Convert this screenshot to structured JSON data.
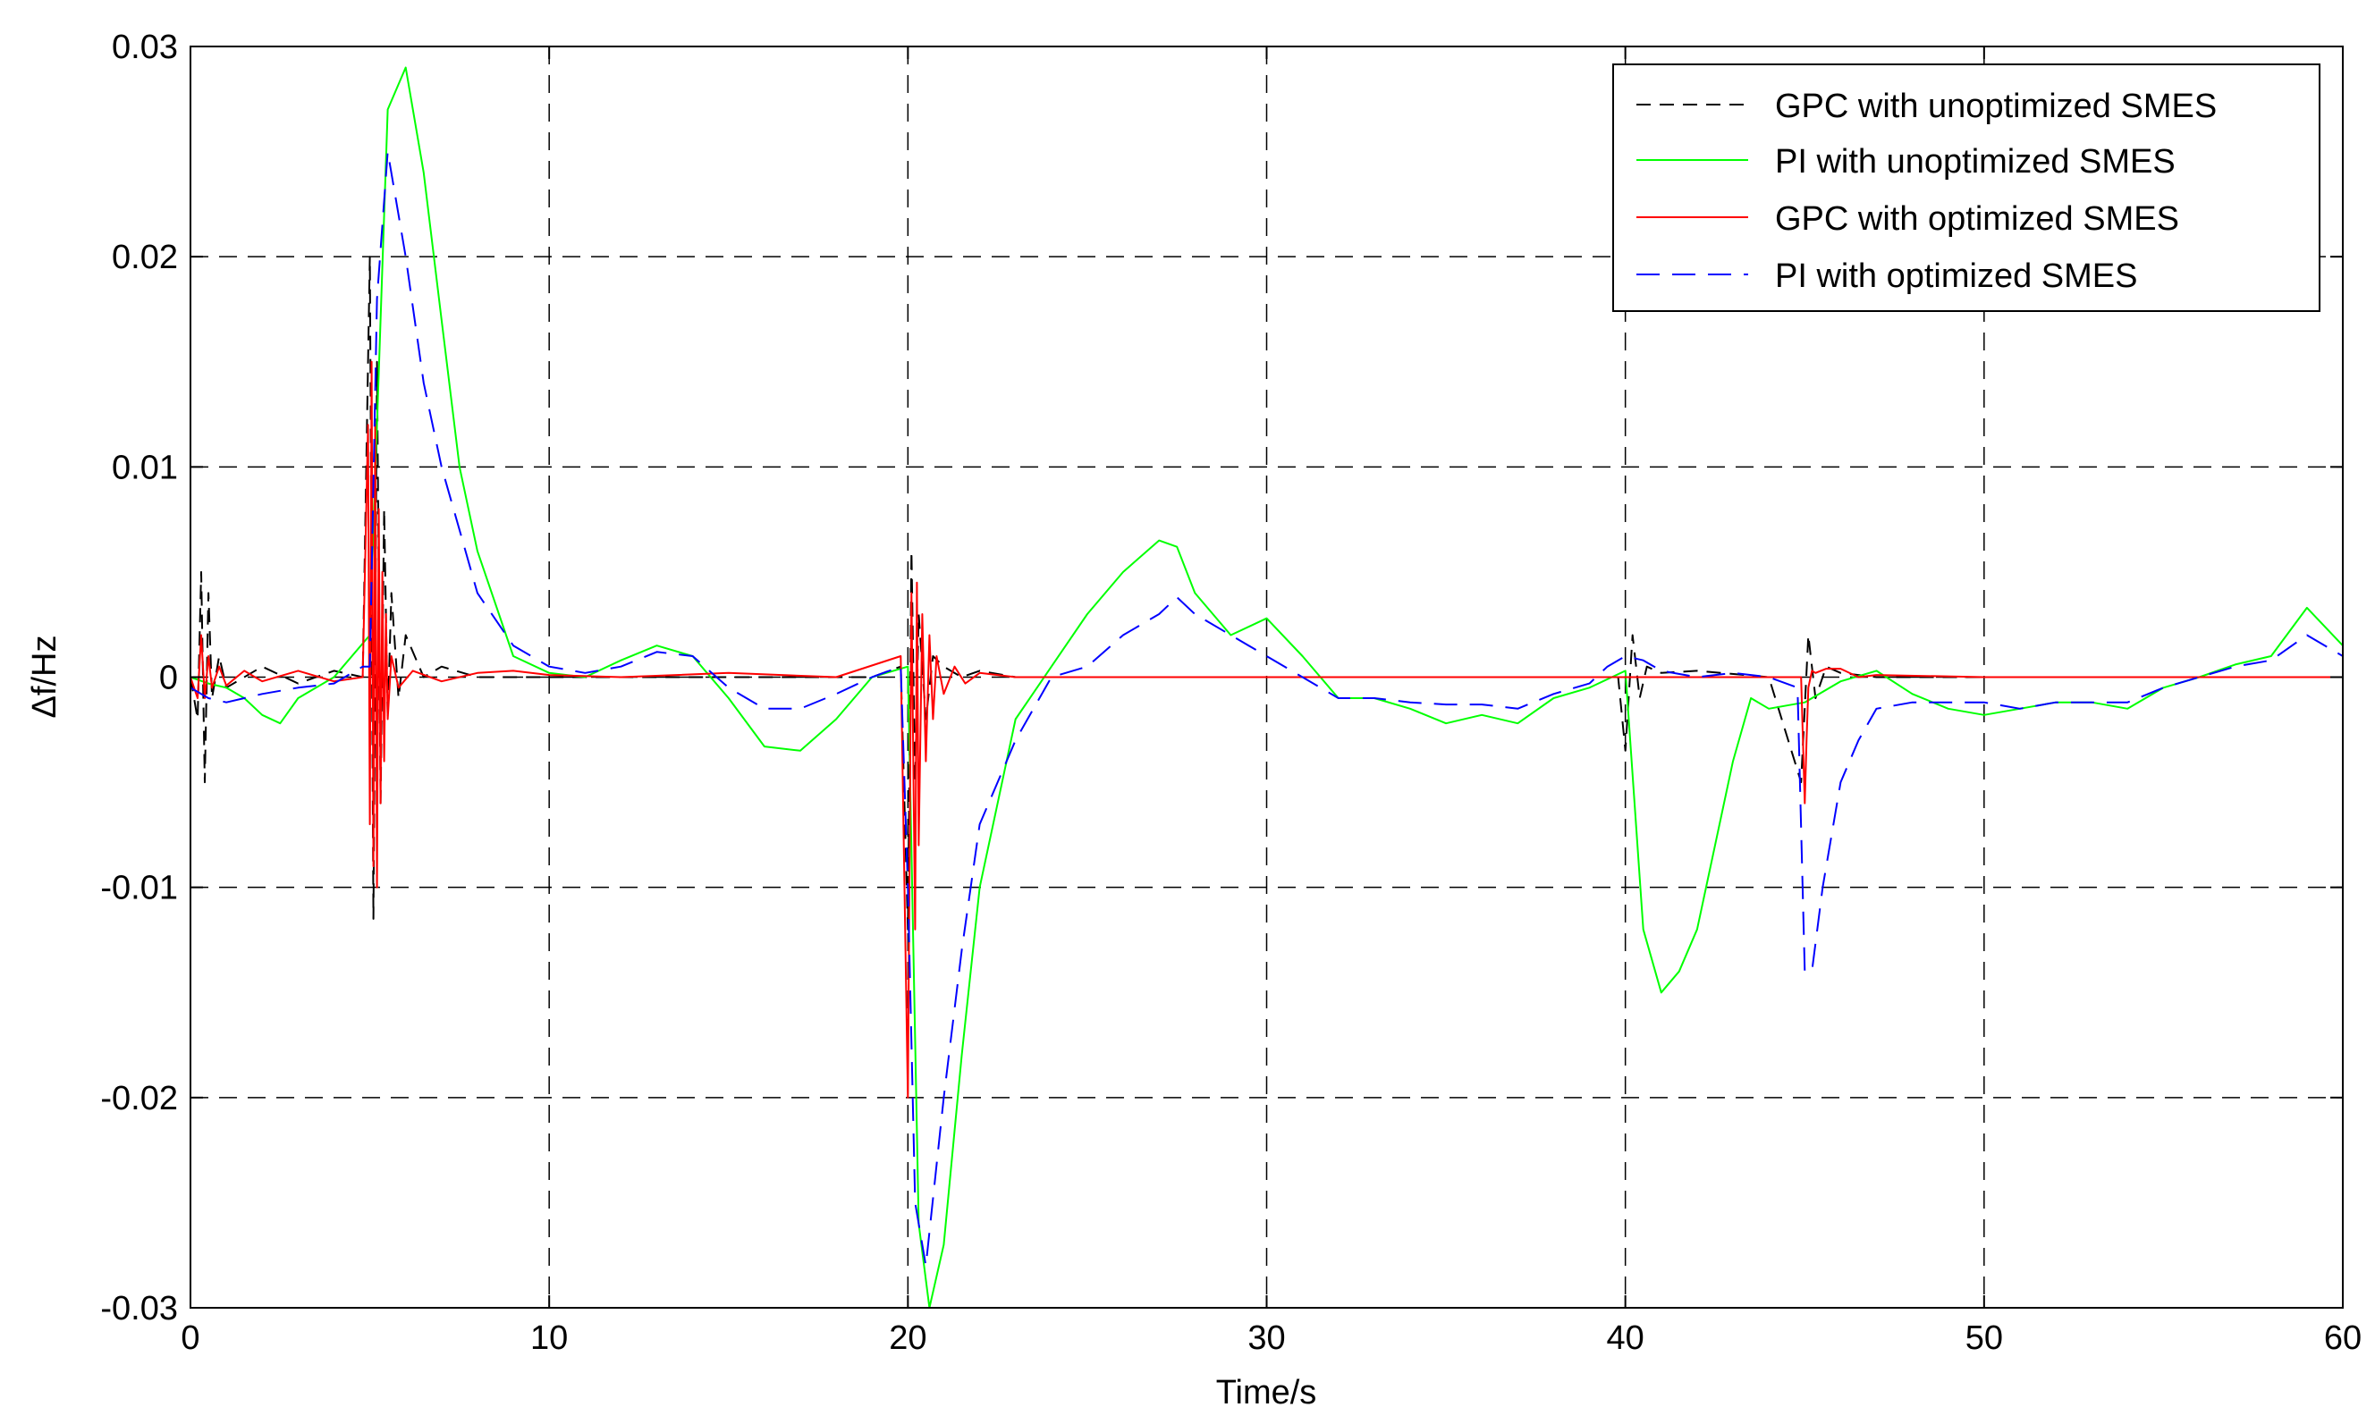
{
  "chart_data": {
    "type": "line",
    "title": "",
    "xlabel": "Time/s",
    "ylabel": "Δf/Hz",
    "xlim": [
      0,
      60
    ],
    "ylim": [
      -0.03,
      0.03
    ],
    "xticks": [
      0,
      10,
      20,
      30,
      40,
      50,
      60
    ],
    "xtick_labels": [
      "0",
      "10",
      "20",
      "30",
      "40",
      "50",
      "60"
    ],
    "yticks": [
      -0.03,
      -0.02,
      -0.01,
      0,
      0.01,
      0.02,
      0.03
    ],
    "ytick_labels": [
      "-0.03",
      "-0.02",
      "-0.01",
      "0",
      "0.01",
      "0.02",
      "0.03"
    ],
    "grid": true,
    "legend_position": "top-right",
    "series": [
      {
        "name": "GPC with unoptimized SMES",
        "color": "#000000",
        "style": "dashed",
        "x": [
          0,
          0.2,
          0.3,
          0.4,
          0.5,
          0.6,
          0.8,
          1,
          2,
          3,
          4,
          4.8,
          5.0,
          5.1,
          5.2,
          5.3,
          5.4,
          5.5,
          5.6,
          5.8,
          6,
          6.5,
          7,
          8,
          10,
          15,
          19,
          19.8,
          20.0,
          20.1,
          20.2,
          20.3,
          20.5,
          20.7,
          21,
          21.5,
          22,
          23,
          25,
          30,
          35,
          39.8,
          40.0,
          40.2,
          40.4,
          40.6,
          41,
          42,
          44,
          44.9,
          45.1,
          45.3,
          45.6,
          46,
          47,
          50,
          55,
          60
        ],
        "y": [
          0,
          -0.002,
          0.005,
          -0.005,
          0.004,
          -0.001,
          0.001,
          -0.0005,
          0.0005,
          -0.0003,
          0.0003,
          0,
          0.02,
          -0.0115,
          0.015,
          -0.006,
          0.008,
          -0.002,
          0.004,
          -0.001,
          0.002,
          0,
          0.0005,
          0,
          0,
          0,
          0,
          0.0005,
          -0.012,
          0.006,
          -0.005,
          0.003,
          -0.002,
          0.001,
          0.0005,
          0,
          0.0003,
          0,
          0,
          0,
          0,
          0,
          -0.0035,
          0.002,
          -0.001,
          0.0005,
          0.0002,
          0.0003,
          0,
          -0.005,
          0.002,
          -0.001,
          0.0005,
          0.0002,
          0,
          0,
          0,
          0
        ]
      },
      {
        "name": "PI with unoptimized SMES",
        "color": "#00ff00",
        "style": "solid",
        "x": [
          0,
          0.5,
          1,
          1.5,
          2,
          2.5,
          3,
          4,
          5,
          5.5,
          6,
          6.5,
          7,
          7.5,
          8,
          9,
          10,
          11,
          12,
          13,
          14,
          15,
          16,
          17,
          18,
          19,
          20,
          20.3,
          20.6,
          21,
          21.5,
          22,
          23,
          24,
          25,
          26,
          27,
          27.5,
          28,
          29,
          30,
          31,
          32,
          33,
          34,
          35,
          36,
          37,
          38,
          39,
          40,
          40.5,
          41,
          41.5,
          42,
          43,
          43.5,
          44,
          45,
          46,
          47,
          48,
          49,
          50,
          51,
          52,
          53,
          54,
          55,
          56,
          57,
          58,
          59,
          60
        ],
        "y": [
          0,
          -0.0003,
          -0.0005,
          -0.001,
          -0.0018,
          -0.0022,
          -0.001,
          0,
          0.002,
          0.027,
          0.029,
          0.024,
          0.017,
          0.01,
          0.006,
          0.001,
          0.0002,
          0,
          0.0008,
          0.0015,
          0.001,
          -0.001,
          -0.0033,
          -0.0035,
          -0.002,
          0,
          0.0005,
          -0.026,
          -0.03,
          -0.027,
          -0.018,
          -0.01,
          -0.002,
          0.0005,
          0.003,
          0.005,
          0.0065,
          0.0062,
          0.004,
          0.002,
          0.0028,
          0.001,
          -0.001,
          -0.001,
          -0.0015,
          -0.0022,
          -0.0018,
          -0.0022,
          -0.001,
          -0.0005,
          0.0003,
          -0.012,
          -0.015,
          -0.014,
          -0.012,
          -0.004,
          -0.001,
          -0.0015,
          -0.0012,
          -0.0002,
          0.0003,
          -0.0008,
          -0.0015,
          -0.0018,
          -0.0015,
          -0.0012,
          -0.0012,
          -0.0015,
          -0.0005,
          0,
          0.0006,
          0.001,
          0.0033,
          0.0015
        ]
      },
      {
        "name": "GPC with optimized SMES",
        "color": "#ff0000",
        "style": "solid",
        "x": [
          0,
          0.2,
          0.3,
          0.4,
          0.5,
          0.6,
          0.8,
          1,
          1.5,
          2,
          3,
          4,
          4.8,
          4.95,
          5.0,
          5.05,
          5.1,
          5.15,
          5.2,
          5.25,
          5.3,
          5.35,
          5.4,
          5.45,
          5.5,
          5.6,
          5.8,
          6.2,
          7,
          8,
          9,
          10,
          12,
          15,
          18,
          19.8,
          20.0,
          20.1,
          20.2,
          20.25,
          20.3,
          20.4,
          20.5,
          20.6,
          20.7,
          20.8,
          21,
          21.3,
          21.6,
          22,
          23,
          25,
          30,
          35,
          40,
          44.9,
          45.0,
          45.05,
          45.1,
          45.2,
          45.3,
          45.6,
          46,
          46.5,
          47,
          50,
          55,
          60
        ],
        "y": [
          0,
          -0.001,
          0.002,
          -0.001,
          0.001,
          -0.0005,
          0.0005,
          -0.0004,
          0.0003,
          -0.0002,
          0.0003,
          -0.0002,
          0,
          0.012,
          -0.007,
          0.015,
          -0.009,
          0.012,
          -0.01,
          0.008,
          -0.006,
          0.005,
          -0.004,
          0.003,
          -0.002,
          0.001,
          -0.0005,
          0.0003,
          -0.0002,
          0.0002,
          0.0003,
          0.0001,
          0,
          0.0002,
          0,
          0.001,
          -0.02,
          0.004,
          -0.012,
          0.0045,
          -0.008,
          0.003,
          -0.004,
          0.002,
          -0.002,
          0.001,
          -0.0008,
          0.0005,
          -0.0003,
          0.0002,
          0,
          0,
          0,
          0,
          0,
          0,
          -0.006,
          -0.003,
          -0.0005,
          0.0003,
          0.0002,
          0.0004,
          0.0004,
          0,
          0.0001,
          0,
          0,
          0
        ]
      },
      {
        "name": "PI with optimized SMES",
        "color": "#0000ff",
        "style": "dashed",
        "x": [
          0,
          0.5,
          1,
          1.5,
          2,
          3,
          4,
          4.8,
          5.0,
          5.2,
          5.5,
          6,
          6.5,
          7,
          7.5,
          8,
          9,
          10,
          11,
          12,
          13,
          14,
          15,
          16,
          17,
          18,
          19,
          19.8,
          20.0,
          20.2,
          20.5,
          21,
          21.5,
          22,
          23,
          24,
          25,
          26,
          27,
          27.5,
          28,
          29,
          30,
          31,
          32,
          33,
          34,
          35,
          36,
          37,
          38,
          39,
          39.5,
          40,
          40.5,
          41,
          42,
          43,
          44,
          44.8,
          45.0,
          45.2,
          45.5,
          46,
          46.5,
          47,
          48,
          49,
          50,
          51,
          52,
          53,
          54,
          55,
          56,
          57,
          58,
          59,
          60
        ],
        "y": [
          -0.0005,
          -0.001,
          -0.0012,
          -0.001,
          -0.0008,
          -0.0005,
          -0.0003,
          0.0005,
          0.0005,
          0.018,
          0.025,
          0.02,
          0.014,
          0.01,
          0.007,
          0.004,
          0.0015,
          0.0005,
          0.0002,
          0.0005,
          0.0012,
          0.001,
          -0.0005,
          -0.0015,
          -0.0015,
          -0.0008,
          0,
          0.0005,
          -0.01,
          -0.025,
          -0.028,
          -0.02,
          -0.013,
          -0.007,
          -0.003,
          0,
          0.0005,
          0.002,
          0.003,
          0.0038,
          0.003,
          0.002,
          0.001,
          0,
          -0.001,
          -0.001,
          -0.0012,
          -0.0013,
          -0.0013,
          -0.0015,
          -0.0008,
          -0.0003,
          0.0005,
          0.001,
          0.0008,
          0.0003,
          0,
          0.0002,
          0,
          -0.0005,
          -0.014,
          -0.014,
          -0.01,
          -0.005,
          -0.003,
          -0.0015,
          -0.0012,
          -0.0012,
          -0.0012,
          -0.0015,
          -0.0012,
          -0.0012,
          -0.0012,
          -0.0005,
          0,
          0.0005,
          0.0008,
          0.002,
          0.001
        ]
      }
    ]
  }
}
